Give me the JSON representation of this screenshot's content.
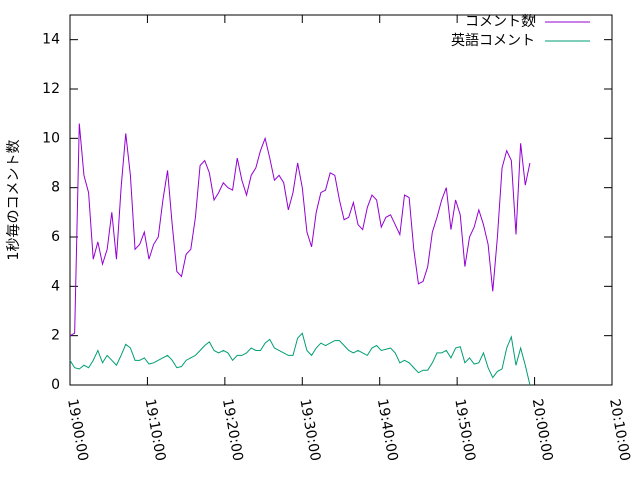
{
  "chart_data": {
    "type": "line",
    "ylabel": "1秒毎のコメント数",
    "x": [
      0,
      36,
      72,
      108,
      144,
      180,
      216,
      252,
      288,
      324,
      360,
      396,
      432,
      468,
      504,
      540,
      576,
      612,
      648,
      684,
      720,
      756,
      792,
      828,
      864,
      900,
      936,
      972,
      1008,
      1044,
      1080,
      1116,
      1152,
      1188,
      1224,
      1260,
      1296,
      1332,
      1368,
      1404,
      1440,
      1476,
      1512,
      1548,
      1584,
      1620,
      1656,
      1692,
      1728,
      1764,
      1800,
      1836,
      1872,
      1908,
      1944,
      1980,
      2016,
      2052,
      2088,
      2124,
      2160,
      2196,
      2232,
      2268,
      2304,
      2340,
      2376,
      2412,
      2448,
      2484,
      2520,
      2556,
      2592,
      2628,
      2664,
      2700,
      2736,
      2772,
      2808,
      2844,
      2880,
      2916,
      2952,
      2988,
      3024,
      3060,
      3096,
      3132,
      3168,
      3204,
      3240,
      3276,
      3312,
      3348,
      3384,
      3420,
      3456,
      3492,
      3528,
      3564
    ],
    "series": [
      {
        "name": "コメント数",
        "color": "#9400d3",
        "values": [
          2.0,
          2.1,
          10.6,
          8.5,
          7.8,
          5.1,
          5.8,
          4.9,
          5.5,
          7.0,
          5.1,
          8.0,
          10.2,
          8.5,
          5.5,
          5.7,
          6.2,
          5.1,
          5.7,
          6.0,
          7.5,
          8.7,
          6.5,
          4.6,
          4.4,
          5.3,
          5.5,
          6.8,
          8.9,
          9.1,
          8.6,
          7.5,
          7.8,
          8.2,
          8.0,
          7.9,
          9.2,
          8.3,
          7.7,
          8.5,
          8.8,
          9.5,
          10.0,
          9.2,
          8.3,
          8.5,
          8.2,
          7.1,
          7.8,
          9.0,
          8.0,
          6.2,
          5.6,
          7.0,
          7.8,
          7.9,
          8.6,
          8.5,
          7.5,
          6.7,
          6.8,
          7.4,
          6.5,
          6.3,
          7.2,
          7.7,
          7.5,
          6.4,
          6.8,
          6.9,
          6.5,
          6.1,
          7.7,
          7.6,
          5.5,
          4.1,
          4.2,
          4.8,
          6.2,
          6.8,
          7.5,
          8.0,
          6.3,
          7.5,
          6.9,
          4.8,
          6.0,
          6.4,
          7.1,
          6.5,
          5.7,
          3.8,
          6.0,
          8.8,
          9.5,
          9.1,
          6.1,
          9.8,
          8.1,
          9.0
        ]
      },
      {
        "name": "英語コメント",
        "color": "#009e73",
        "values": [
          1.0,
          0.7,
          0.65,
          0.8,
          0.7,
          1.0,
          1.4,
          0.9,
          1.2,
          1.0,
          0.8,
          1.2,
          1.65,
          1.5,
          1.0,
          1.0,
          1.1,
          0.85,
          0.9,
          1.0,
          1.1,
          1.2,
          1.0,
          0.7,
          0.75,
          1.0,
          1.1,
          1.2,
          1.4,
          1.6,
          1.75,
          1.4,
          1.3,
          1.4,
          1.3,
          1.0,
          1.2,
          1.2,
          1.3,
          1.5,
          1.4,
          1.4,
          1.7,
          1.85,
          1.5,
          1.4,
          1.3,
          1.2,
          1.2,
          1.9,
          2.1,
          1.4,
          1.2,
          1.5,
          1.7,
          1.6,
          1.7,
          1.8,
          1.8,
          1.6,
          1.4,
          1.3,
          1.4,
          1.3,
          1.2,
          1.5,
          1.6,
          1.4,
          1.45,
          1.5,
          1.3,
          0.9,
          1.0,
          0.9,
          0.7,
          0.5,
          0.6,
          0.6,
          0.9,
          1.3,
          1.3,
          1.4,
          1.1,
          1.5,
          1.55,
          0.9,
          1.1,
          0.85,
          0.9,
          1.3,
          0.7,
          0.3,
          0.55,
          0.65,
          1.5,
          1.95,
          0.8,
          1.5,
          0.8,
          0.0
        ]
      }
    ],
    "xlim": [
      0,
      4200
    ],
    "xticks": [
      {
        "value": 0,
        "label": "19:00:00"
      },
      {
        "value": 600,
        "label": "19:10:00"
      },
      {
        "value": 1200,
        "label": "19:20:00"
      },
      {
        "value": 1800,
        "label": "19:30:00"
      },
      {
        "value": 2400,
        "label": "19:40:00"
      },
      {
        "value": 3000,
        "label": "19:50:00"
      },
      {
        "value": 3600,
        "label": "20:00:00"
      },
      {
        "value": 4200,
        "label": "20:10:00"
      }
    ],
    "ylim": [
      0,
      15
    ],
    "yticks": [
      0,
      2,
      4,
      6,
      8,
      10,
      12,
      14
    ],
    "legend": "upper right"
  }
}
